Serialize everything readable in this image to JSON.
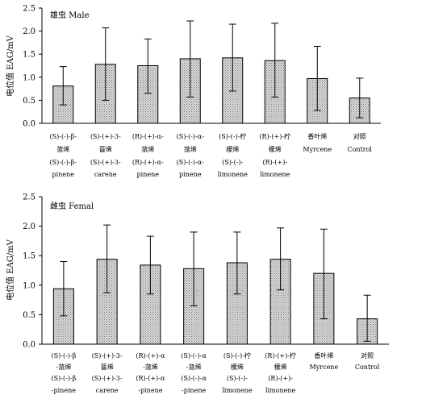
{
  "chart_data": [
    {
      "type": "bar",
      "title": "雄虫 Male",
      "ylabel": "电位值 EAG/mV",
      "ylim": [
        0,
        2.5
      ],
      "yticks": [
        "0.0",
        "0.5",
        "1.0",
        "1.5",
        "2.0",
        "2.5"
      ],
      "grid": false,
      "legend": "none",
      "categories": [
        {
          "line1": "(S)-(-)-β-",
          "line2": "蒎烯",
          "line3": "(S)-(-)-β-",
          "line4": "pinene"
        },
        {
          "line1": "(S)-(+)-3-",
          "line2": "蒈烯",
          "line3": "(S)-(+)-3-",
          "line4": "carene"
        },
        {
          "line1": "(R)-(+)-α-",
          "line2": "蒎烯",
          "line3": "(R)-(+)-α-",
          "line4": "pinene"
        },
        {
          "line1": "(S)-(-)-α-",
          "line2": "蒎烯",
          "line3": "(S)-(-)-α-",
          "line4": "pinene"
        },
        {
          "line1": "(S)-(-)-柠",
          "line2": "檬烯",
          "line3": "(S)-(-)-",
          "line4": "limonene"
        },
        {
          "line1": "(R)-(+)-柠",
          "line2": "檬烯",
          "line3": "(R)-(+)-",
          "line4": "limonene"
        },
        {
          "line1": "香叶烯",
          "line2": "Myrcene",
          "line3": "",
          "line4": ""
        },
        {
          "line1": "对照",
          "line2": "Control",
          "line3": "",
          "line4": ""
        }
      ],
      "values": [
        0.81,
        1.28,
        1.25,
        1.4,
        1.42,
        1.36,
        0.97,
        0.55
      ],
      "error_low": [
        0.4,
        0.5,
        0.65,
        0.57,
        0.7,
        0.57,
        0.28,
        0.12
      ],
      "error_high": [
        1.23,
        2.07,
        1.83,
        2.22,
        2.15,
        2.17,
        1.67,
        0.98
      ],
      "bar_color": "#cfcfcf"
    },
    {
      "type": "bar",
      "title": "雌虫 Femal",
      "ylabel": "电位值 EAG/mV",
      "ylim": [
        0,
        2.5
      ],
      "yticks": [
        "0.0",
        "0.5",
        "1.0",
        "1.5",
        "2.0",
        "2.5"
      ],
      "grid": false,
      "legend": "none",
      "categories": [
        {
          "line1": "(S)-(-)-β",
          "line2": "-蒎烯",
          "line3": "(S)-(-)-β",
          "line4": "-pinene"
        },
        {
          "line1": "(S)-(+)-3-",
          "line2": "蒈烯",
          "line3": "(S)-(+)-3-",
          "line4": "carene"
        },
        {
          "line1": "(R)-(+)-α",
          "line2": "-蒎烯",
          "line3": "(R)-(+)-α",
          "line4": "-pinene"
        },
        {
          "line1": "(S)-(-)-α",
          "line2": "-蒎烯",
          "line3": "(S)-(-)-α",
          "line4": "-pinene"
        },
        {
          "line1": "(S)-(-)-柠",
          "line2": "檬烯",
          "line3": "(S)-(-)-",
          "line4": "limonene"
        },
        {
          "line1": "(R)-(+)-柠",
          "line2": "檬烯",
          "line3": "(R)-(+)-",
          "line4": "limonene"
        },
        {
          "line1": "香叶烯",
          "line2": "Myrcene",
          "line3": "",
          "line4": ""
        },
        {
          "line1": "对照",
          "line2": "Control",
          "line3": "",
          "line4": ""
        }
      ],
      "values": [
        0.94,
        1.44,
        1.34,
        1.28,
        1.38,
        1.44,
        1.2,
        0.43
      ],
      "error_low": [
        0.48,
        0.87,
        0.85,
        0.65,
        0.85,
        0.92,
        0.43,
        0.05
      ],
      "error_high": [
        1.4,
        2.02,
        1.83,
        1.9,
        1.9,
        1.97,
        1.95,
        0.83
      ],
      "bar_color": "#cfcfcf"
    }
  ]
}
